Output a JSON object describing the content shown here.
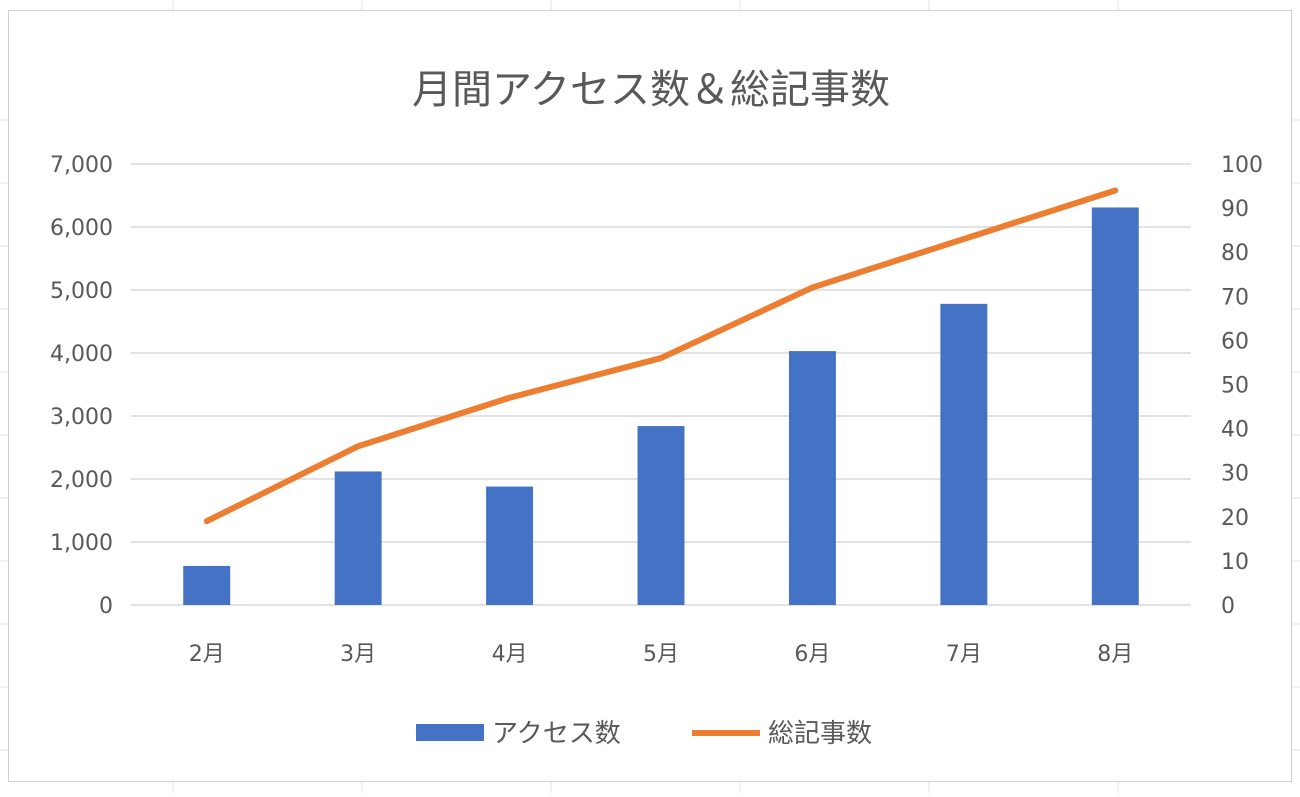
{
  "chart_data": {
    "type": "bar",
    "title": "月間アクセス数＆総記事数",
    "categories": [
      "2月",
      "3月",
      "4月",
      "5月",
      "6月",
      "7月",
      "8月"
    ],
    "series": [
      {
        "name": "アクセス数",
        "type": "bar",
        "axis": "left",
        "color": "#4472C4",
        "values": [
          620,
          2120,
          1880,
          2840,
          4030,
          4780,
          6310
        ]
      },
      {
        "name": "総記事数",
        "type": "line",
        "axis": "right",
        "color": "#ED7D31",
        "values": [
          19,
          36,
          47,
          56,
          72,
          83,
          94
        ]
      }
    ],
    "y_left": {
      "min": 0,
      "max": 7000,
      "step": 1000,
      "tick_labels": [
        "0",
        "1,000",
        "2,000",
        "3,000",
        "4,000",
        "5,000",
        "6,000",
        "7,000"
      ]
    },
    "y_right": {
      "min": 0,
      "max": 100,
      "step": 10,
      "tick_labels": [
        "0",
        "10",
        "20",
        "30",
        "40",
        "50",
        "60",
        "70",
        "80",
        "90",
        "100"
      ]
    },
    "grid": true,
    "legend_position": "bottom"
  }
}
